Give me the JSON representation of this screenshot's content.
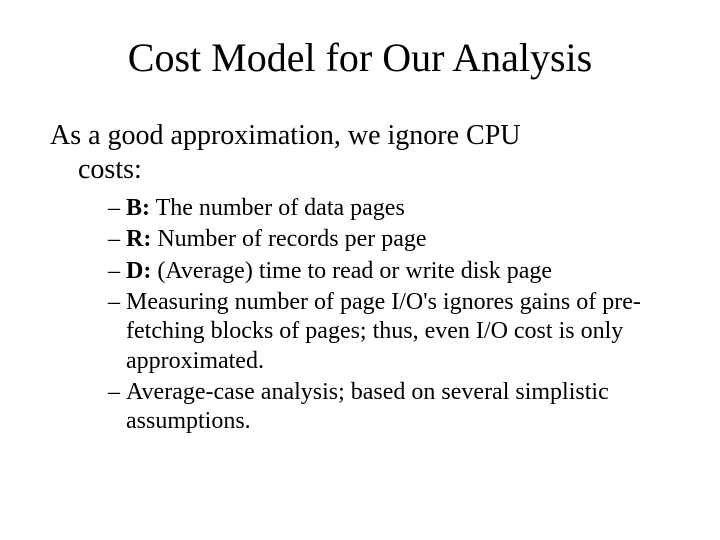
{
  "colors": {
    "background": "#ffffff",
    "text": "#000000"
  },
  "typography": {
    "font_family": "Times New Roman, serif",
    "title_fontsize": 40,
    "body_fontsize": 28,
    "subitem_fontsize": 24
  },
  "title": "Cost Model for Our Analysis",
  "body_line1": "As a good approximation, we ignore CPU",
  "body_line2": "costs:",
  "items": {
    "i0": {
      "term": "B:",
      "text": "  The number of data pages"
    },
    "i1": {
      "term": "R:",
      "text": "  Number of records per page"
    },
    "i2": {
      "term": "D:",
      "text": "  (Average) time to read or write disk page"
    },
    "i3": {
      "term": "",
      "text": "Measuring number of page I/O's ignores gains of pre-fetching blocks of pages; thus, even I/O cost is only approximated."
    },
    "i4": {
      "term": "",
      "text": "Average-case analysis; based on several simplistic assumptions."
    }
  },
  "dash": "–"
}
